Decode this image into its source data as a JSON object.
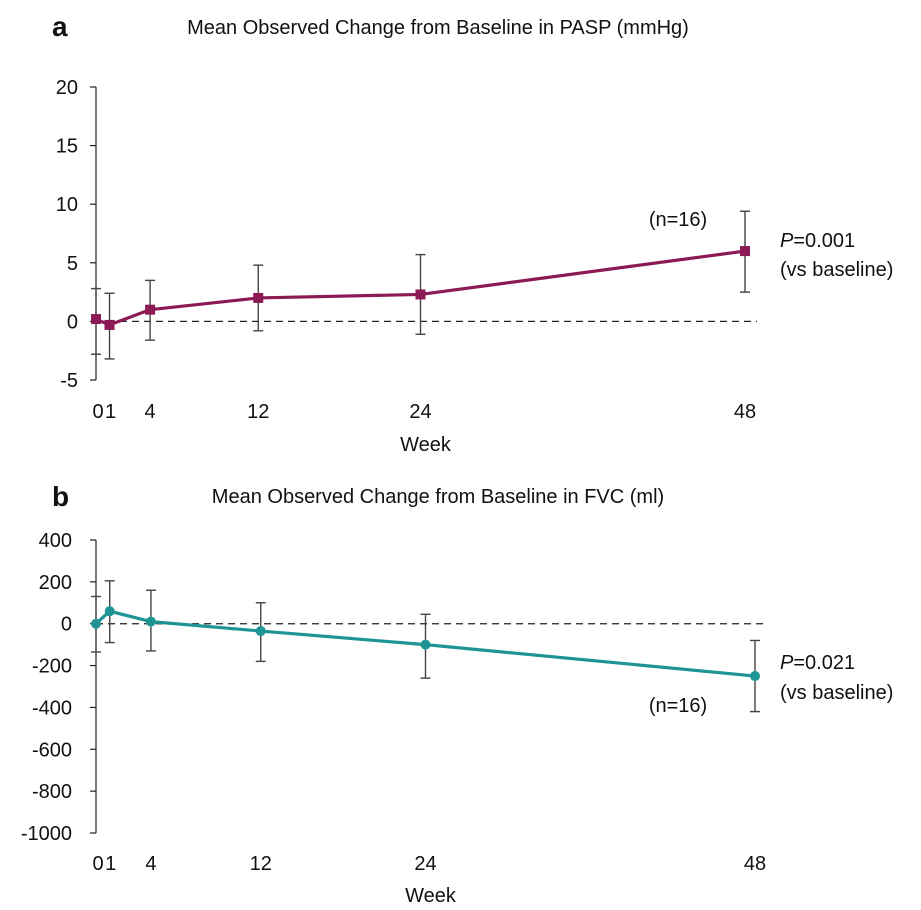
{
  "chart_data": [
    {
      "id": "a",
      "type": "line",
      "panel_label": "a",
      "title": "Mean Observed Change from Baseline in PASP (mmHg)",
      "xlabel": "Week",
      "ylabel": "",
      "x_ticks": [
        "0",
        "1",
        "4",
        "12",
        "24",
        "48"
      ],
      "x_tick_values": [
        0,
        1,
        4,
        12,
        24,
        48
      ],
      "y_ticks": [
        "20",
        "15",
        "10",
        "5",
        "0",
        "-5"
      ],
      "y_tick_values": [
        20,
        15,
        10,
        5,
        0,
        -5
      ],
      "ylim": [
        -5,
        20
      ],
      "xlim": [
        0,
        48
      ],
      "grid": false,
      "reference_line": {
        "y": 0,
        "style": "dashed"
      },
      "series": [
        {
          "color": "#8b1a55",
          "marker": "square",
          "x": [
            0,
            1,
            4,
            12,
            24,
            48
          ],
          "y": [
            0.2,
            -0.3,
            1.0,
            2.0,
            2.3,
            6.0
          ],
          "error_low": [
            -2.8,
            -3.2,
            -1.6,
            -0.8,
            -1.1,
            2.5
          ],
          "error_high": [
            2.8,
            2.4,
            3.5,
            4.8,
            5.7,
            9.4
          ]
        }
      ],
      "annotations": {
        "n_label": "(n=16)",
        "p_italic": "P",
        "p_value": "=0.001",
        "p_note": "(vs baseline)"
      }
    },
    {
      "id": "b",
      "type": "line",
      "panel_label": "b",
      "title": "Mean Observed Change from Baseline in FVC (ml)",
      "xlabel": "Week",
      "ylabel": "",
      "x_ticks": [
        "0",
        "1",
        "4",
        "12",
        "24",
        "48"
      ],
      "x_tick_values": [
        0,
        1,
        4,
        12,
        24,
        48
      ],
      "y_ticks": [
        "400",
        "200",
        "0",
        "-200",
        "-400",
        "-600",
        "-800",
        "-1000"
      ],
      "y_tick_values": [
        400,
        200,
        0,
        -200,
        -400,
        -600,
        -800,
        -1000
      ],
      "ylim": [
        -1000,
        400
      ],
      "xlim": [
        0,
        48
      ],
      "grid": false,
      "reference_line": {
        "y": 0,
        "style": "dashed"
      },
      "series": [
        {
          "color": "#1e9494",
          "marker": "circle",
          "x": [
            0,
            1,
            4,
            12,
            24,
            48
          ],
          "y": [
            0,
            60,
            10,
            -35,
            -100,
            -250
          ],
          "error_low": [
            -135,
            -90,
            -130,
            -180,
            -260,
            -420
          ],
          "error_high": [
            130,
            205,
            160,
            100,
            45,
            -80
          ]
        }
      ],
      "annotations": {
        "n_label": "(n=16)",
        "p_italic": "P",
        "p_value": "=0.021",
        "p_note": "(vs baseline)"
      }
    }
  ]
}
